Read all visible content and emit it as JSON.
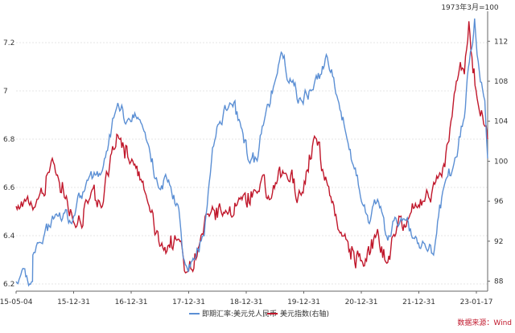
{
  "chart_data": {
    "type": "line",
    "right_axis_note": "1973年3月=100",
    "source": "数据来源：Wind",
    "x_tick_labels": [
      "15-05-04",
      "15-12-31",
      "16-12-31",
      "17-12-31",
      "18-12-31",
      "19-12-31",
      "20-12-31",
      "21-12-31",
      "23-01-17"
    ],
    "left_axis": {
      "ticks": [
        "6.2",
        "6.4",
        "6.6",
        "6.8",
        "7",
        "7.2"
      ],
      "range": [
        6.17,
        7.33
      ]
    },
    "right_axis": {
      "ticks": [
        "88",
        "92",
        "96",
        "100",
        "104",
        "108",
        "112"
      ],
      "range": [
        87,
        115
      ]
    },
    "grid": true,
    "legend_position": "bottom",
    "colors": {
      "usdcny": "#5b8fd4",
      "dxy": "#c0172b"
    },
    "series": [
      {
        "name": "即期汇率:美元兑人民币",
        "axis": "left",
        "x": [
          "2015-05-04",
          "2015-08-10",
          "2015-08-12",
          "2015-09-15",
          "2015-12-31",
          "2016-03-31",
          "2016-06-30",
          "2016-09-30",
          "2016-12-31",
          "2017-02-28",
          "2017-04-30",
          "2017-06-30",
          "2017-08-31",
          "2017-10-31",
          "2017-12-31",
          "2018-02-07",
          "2018-03-31",
          "2018-05-31",
          "2018-06-30",
          "2018-08-15",
          "2018-10-31",
          "2018-12-31",
          "2019-02-28",
          "2019-04-12",
          "2019-05-31",
          "2019-08-05",
          "2019-09-03",
          "2019-10-31",
          "2019-12-31",
          "2020-02-28",
          "2020-04-30",
          "2020-05-29",
          "2020-07-31",
          "2020-09-30",
          "2020-12-31",
          "2021-02-10",
          "2021-03-31",
          "2021-05-31",
          "2021-06-30",
          "2021-08-31",
          "2021-10-31",
          "2021-12-31",
          "2022-02-28",
          "2022-04-30",
          "2022-06-30",
          "2022-08-31",
          "2022-09-30",
          "2022-10-31",
          "2022-11-15",
          "2022-12-31",
          "2023-01-17"
        ],
        "values": [
          6.21,
          6.21,
          6.32,
          6.37,
          6.49,
          6.45,
          6.63,
          6.67,
          6.95,
          6.88,
          6.89,
          6.78,
          6.6,
          6.63,
          6.51,
          6.28,
          6.3,
          6.4,
          6.62,
          6.85,
          6.95,
          6.87,
          6.7,
          6.71,
          6.9,
          7.06,
          7.16,
          7.04,
          6.96,
          7.0,
          7.07,
          7.15,
          6.98,
          6.8,
          6.53,
          6.45,
          6.55,
          6.38,
          6.46,
          6.47,
          6.39,
          6.37,
          6.32,
          6.6,
          6.7,
          6.89,
          7.12,
          7.3,
          7.15,
          6.96,
          6.72
        ]
      },
      {
        "name": "美元指数(右轴)",
        "axis": "right",
        "x": [
          "2015-05-04",
          "2015-06-30",
          "2015-08-31",
          "2015-11-30",
          "2015-12-31",
          "2016-02-28",
          "2016-04-30",
          "2016-06-30",
          "2016-09-30",
          "2016-11-30",
          "2016-12-31",
          "2017-03-31",
          "2017-06-30",
          "2017-09-08",
          "2017-12-31",
          "2018-02-15",
          "2018-04-30",
          "2018-06-30",
          "2018-09-30",
          "2018-12-31",
          "2019-03-31",
          "2019-06-30",
          "2019-09-30",
          "2019-12-31",
          "2020-03-19",
          "2020-05-31",
          "2020-08-31",
          "2020-12-31",
          "2021-01-06",
          "2021-03-31",
          "2021-05-25",
          "2021-06-30",
          "2021-09-30",
          "2021-12-31",
          "2022-03-31",
          "2022-05-31",
          "2022-07-14",
          "2022-08-31",
          "2022-09-27",
          "2022-11-15",
          "2022-12-31",
          "2023-01-17"
        ],
        "values": [
          95.5,
          96.0,
          95.8,
          100.0,
          98.6,
          96.5,
          93.5,
          96.0,
          95.5,
          101.5,
          102.6,
          100.0,
          95.8,
          91.5,
          92.2,
          88.9,
          91.5,
          94.5,
          94.8,
          96.2,
          97.1,
          96.2,
          98.8,
          96.6,
          102.5,
          98.0,
          92.5,
          89.9,
          89.5,
          93.2,
          89.8,
          92.5,
          94.2,
          96.0,
          98.5,
          102.0,
          108.0,
          108.7,
          114.0,
          106.3,
          103.5,
          102.2
        ]
      }
    ]
  }
}
